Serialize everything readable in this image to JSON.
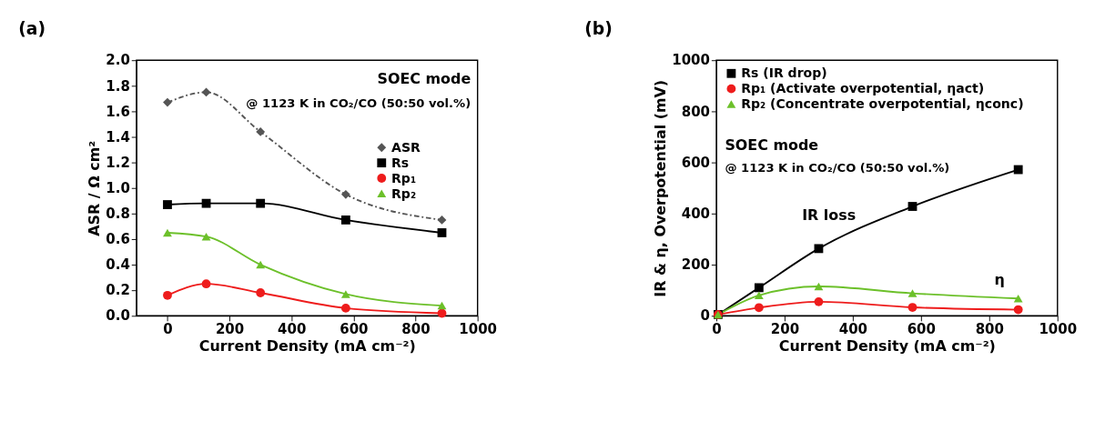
{
  "chart_data": [
    {
      "type": "line",
      "title": "(a)",
      "xlabel": "Current Density (mA cm⁻²)",
      "ylabel": "ASR / Ω cm²",
      "x": [
        0,
        125,
        300,
        575,
        885
      ],
      "series": [
        {
          "name": "ASR",
          "color": "#555555",
          "values": [
            1.67,
            1.75,
            1.44,
            0.95,
            0.75
          ],
          "marker": "diamond",
          "line_style": "dashed"
        },
        {
          "name": "Rs",
          "color": "#000000",
          "values": [
            0.87,
            0.88,
            0.88,
            0.75,
            0.65
          ],
          "marker": "square",
          "line_style": "solid"
        },
        {
          "name": "Rp₁",
          "color": "#ee1c1c",
          "values": [
            0.16,
            0.25,
            0.18,
            0.06,
            0.02
          ],
          "marker": "circle",
          "line_style": "solid"
        },
        {
          "name": "Rp₂",
          "color": "#6cc02a",
          "values": [
            0.65,
            0.62,
            0.4,
            0.17,
            0.08
          ],
          "marker": "triangle",
          "line_style": "solid"
        }
      ],
      "xlim": [
        -100,
        1000
      ],
      "xticks": [
        0,
        200,
        400,
        600,
        800,
        1000
      ],
      "ylim": [
        0,
        2
      ],
      "yticks": [
        {
          "value": 0,
          "label": "0.0"
        },
        0.2,
        0.4,
        0.6,
        0.8,
        {
          "value": 1,
          "label": "1.0"
        },
        1.2,
        1.4,
        1.6,
        1.8,
        {
          "value": 2,
          "label": "2.0"
        }
      ],
      "grid": false,
      "legend": "right",
      "annotations": [
        "SOEC mode",
        "@ 1123 K in CO₂/CO (50:50 vol.%)"
      ]
    },
    {
      "type": "line",
      "title": "(b)",
      "xlabel": "Current Density (mA cm⁻²)",
      "ylabel": "IR & η, Overpotential (mV)",
      "x": [
        5,
        125,
        300,
        575,
        885
      ],
      "series": [
        {
          "name": "Rs (IR drop)",
          "color": "#000000",
          "values": [
            5,
            110,
            263,
            428,
            572
          ],
          "marker": "square",
          "line_style": "solid"
        },
        {
          "name": "Rp₁ (Activate overpotential, ηact)",
          "color": "#ee1c1c",
          "values": [
            5,
            32,
            55,
            33,
            24
          ],
          "marker": "circle",
          "line_style": "solid"
        },
        {
          "name": "Rp₂ (Concentrate overpotential, ηconc)",
          "color": "#6cc02a",
          "values": [
            5,
            80,
            115,
            88,
            68
          ],
          "marker": "triangle",
          "line_style": "solid"
        }
      ],
      "xlim": [
        0,
        1000
      ],
      "xticks": [
        0,
        200,
        400,
        600,
        800,
        1000
      ],
      "ylim": [
        0,
        1000
      ],
      "yticks": [
        0,
        200,
        400,
        600,
        800,
        1000
      ],
      "grid": false,
      "legend": "top left",
      "annotations": [
        "SOEC mode",
        "@ 1123 K in CO₂/CO (50:50 vol.%)",
        "IR loss",
        "η"
      ]
    }
  ]
}
